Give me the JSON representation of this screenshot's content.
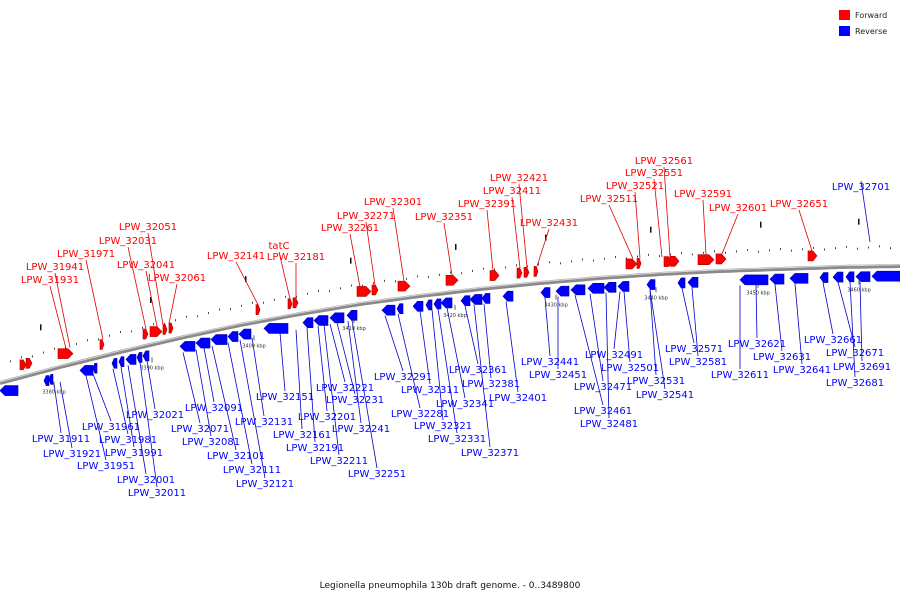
{
  "caption": "Legionella pneumophila 130b draft genome. - 0..3489800",
  "legend": [
    {
      "label": "Forward",
      "color": "#ff0000"
    },
    {
      "label": "Reverse",
      "color": "#0000ff"
    }
  ],
  "colors": {
    "forward": "#ff0000",
    "forward_dark": "#b00000",
    "forward_leader": "#dd0000",
    "reverse": "#0000ff",
    "reverse_dark": "#0000a0",
    "reverse_leader": "#0000cc",
    "backbone": "#8a8a8a"
  },
  "ticks": [
    "3380 kbp",
    "3390 kbp",
    "3400 kbp",
    "3410 kbp",
    "3420 kbp",
    "3430 kbp",
    "3440 kbp",
    "3450 kbp",
    "3460 kbp"
  ],
  "forward_labels": [
    "LPW_31931",
    "LPW_31941",
    "LPW_31971",
    "LPW_32031",
    "LPW_32041",
    "LPW_32051",
    "LPW_32061",
    "LPW_32141",
    "tatC",
    "LPW_32181",
    "LPW_32261",
    "LPW_32271",
    "LPW_32301",
    "LPW_32351",
    "LPW_32391",
    "LPW_32411",
    "LPW_32421",
    "LPW_32431",
    "LPW_32511",
    "LPW_32521",
    "LPW_32551",
    "LPW_32561",
    "LPW_32591",
    "LPW_32601",
    "LPW_32651"
  ],
  "reverse_labels_top": [
    "LPW_32701"
  ],
  "reverse_labels": [
    "LPW_31911",
    "LPW_31921",
    "LPW_31951",
    "LPW_31961",
    "LPW_31981",
    "LPW_31991",
    "LPW_32001",
    "LPW_32011",
    "LPW_32021",
    "LPW_32071",
    "LPW_32081",
    "LPW_32091",
    "LPW_32101",
    "LPW_32111",
    "LPW_32121",
    "LPW_32131",
    "LPW_32151",
    "LPW_32161",
    "LPW_32191",
    "LPW_32201",
    "LPW_32211",
    "LPW_32221",
    "LPW_32231",
    "LPW_32241",
    "LPW_32251",
    "LPW_32281",
    "LPW_32291",
    "LPW_32311",
    "LPW_32321",
    "LPW_32331",
    "LPW_32341",
    "LPW_32361",
    "LPW_32371",
    "LPW_32381",
    "LPW_32401",
    "LPW_32441",
    "LPW_32451",
    "LPW_32461",
    "LPW_32471",
    "LPW_32481",
    "LPW_32491",
    "LPW_32501",
    "LPW_32531",
    "LPW_32541",
    "LPW_32571",
    "LPW_32581",
    "LPW_32611",
    "LPW_32621",
    "LPW_32631",
    "LPW_32641",
    "LPW_32661",
    "LPW_32671",
    "LPW_32681",
    "LPW_32691"
  ]
}
